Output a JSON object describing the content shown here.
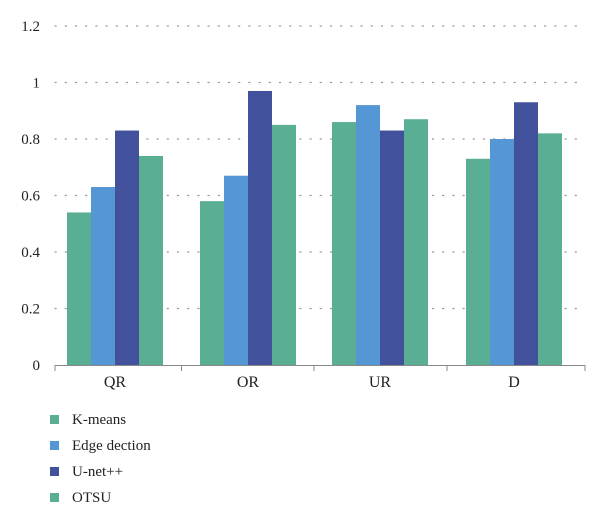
{
  "chart_data": {
    "type": "bar",
    "categories": [
      "QR",
      "OR",
      "UR",
      "D"
    ],
    "series": [
      {
        "name": "K-means",
        "color": "#5aae94",
        "values": [
          0.54,
          0.58,
          0.86,
          0.73
        ]
      },
      {
        "name": "Edge dection",
        "color": "#5596d4",
        "values": [
          0.63,
          0.67,
          0.92,
          0.8
        ]
      },
      {
        "name": "U-net++",
        "color": "#41519c",
        "values": [
          0.83,
          0.97,
          0.83,
          0.93
        ]
      },
      {
        "name": "OTSU",
        "color": "#5aae94",
        "values": [
          0.74,
          0.85,
          0.87,
          0.82
        ]
      }
    ],
    "ylim": [
      0,
      1.2
    ],
    "yticks": [
      0,
      0.2,
      0.4,
      0.6,
      0.8,
      1,
      1.2
    ],
    "ytick_labels": [
      "0",
      "0.2",
      "0.4",
      "0.6",
      "0.8",
      "1",
      "1.2"
    ],
    "grid": "dotted horizontal",
    "legend_position": "bottom-left",
    "title": "",
    "xlabel": "",
    "ylabel": ""
  }
}
